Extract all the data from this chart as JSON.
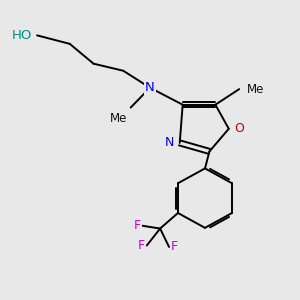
{
  "background_color": "#e8e8e8",
  "bond_color": "#000000",
  "fig_width": 3.0,
  "fig_height": 3.0,
  "dpi": 100,
  "xlim": [
    0.0,
    10.0
  ],
  "ylim": [
    0.0,
    10.5
  ]
}
